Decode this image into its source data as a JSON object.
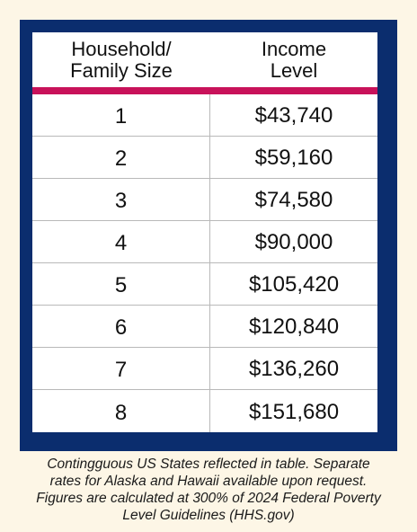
{
  "table": {
    "header": {
      "col1_line1": "Household/",
      "col1_line2": "Family Size",
      "col2_line1": "Income",
      "col2_line2": "Level"
    },
    "rows": [
      {
        "size": "1",
        "income": "$43,740"
      },
      {
        "size": "2",
        "income": "$59,160"
      },
      {
        "size": "3",
        "income": "$74,580"
      },
      {
        "size": "4",
        "income": "$90,000"
      },
      {
        "size": "5",
        "income": "$105,420"
      },
      {
        "size": "6",
        "income": "$120,840"
      },
      {
        "size": "7",
        "income": "$136,260"
      },
      {
        "size": "8",
        "income": "$151,680"
      }
    ]
  },
  "footnote": {
    "line1": "Contingguous US States reflected in table. Separate",
    "line2": "rates for Alaska and Hawaii available upon request.",
    "line3": "Figures are calculated at 300% of 2024 Federal Poverty",
    "line4": "Level Guidelines (HHS.gov)"
  },
  "colors": {
    "frame": "#0b2d6e",
    "accent_bar": "#c8125a",
    "background": "#fdf6e6"
  }
}
